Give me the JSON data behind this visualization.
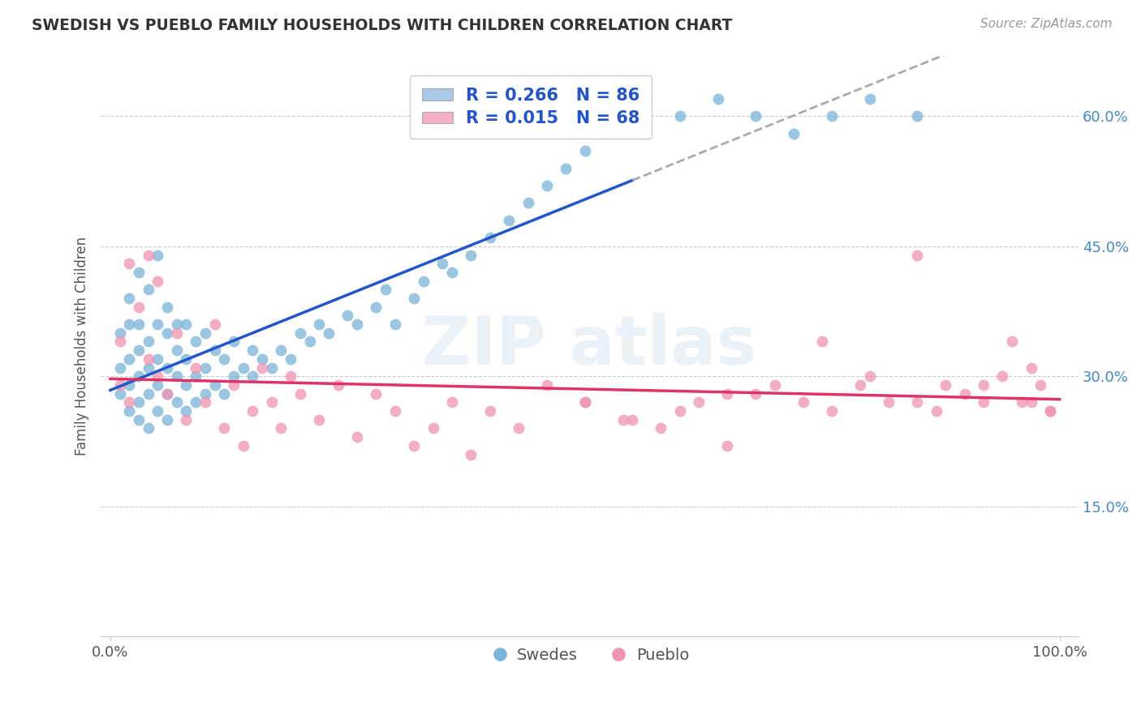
{
  "title": "SWEDISH VS PUEBLO FAMILY HOUSEHOLDS WITH CHILDREN CORRELATION CHART",
  "source": "Source: ZipAtlas.com",
  "ylabel": "Family Households with Children",
  "scatter_color_swedish": "#7ab4d8",
  "scatter_color_pueblo": "#f093b0",
  "trendline_color_swedish": "#2255cc",
  "trendline_color_pueblo": "#dd3366",
  "legend_fill_swedish": "#aac8e8",
  "legend_fill_pueblo": "#f4b0c8",
  "legend_text_1": "R = 0.266   N = 86",
  "legend_text_2": "R = 0.015   N = 68",
  "bottom_label_1": "Swedes",
  "bottom_label_2": "Pueblo",
  "watermark": "ZIPatlas",
  "y_ticks": [
    0.0,
    0.15,
    0.3,
    0.45,
    0.6
  ],
  "y_tick_labels": [
    "",
    "15.0%",
    "30.0%",
    "45.0%",
    "60.0%"
  ],
  "swedish_x": [
    0.01,
    0.01,
    0.01,
    0.02,
    0.02,
    0.02,
    0.02,
    0.02,
    0.03,
    0.03,
    0.03,
    0.03,
    0.03,
    0.03,
    0.04,
    0.04,
    0.04,
    0.04,
    0.04,
    0.05,
    0.05,
    0.05,
    0.05,
    0.05,
    0.06,
    0.06,
    0.06,
    0.06,
    0.06,
    0.07,
    0.07,
    0.07,
    0.07,
    0.08,
    0.08,
    0.08,
    0.08,
    0.09,
    0.09,
    0.09,
    0.1,
    0.1,
    0.1,
    0.11,
    0.11,
    0.12,
    0.12,
    0.13,
    0.13,
    0.14,
    0.15,
    0.15,
    0.16,
    0.17,
    0.18,
    0.19,
    0.2,
    0.21,
    0.22,
    0.23,
    0.25,
    0.26,
    0.28,
    0.29,
    0.3,
    0.32,
    0.33,
    0.35,
    0.36,
    0.38,
    0.4,
    0.42,
    0.44,
    0.46,
    0.48,
    0.5,
    0.52,
    0.54,
    0.56,
    0.6,
    0.64,
    0.68,
    0.72,
    0.76,
    0.8,
    0.85
  ],
  "swedish_y": [
    0.28,
    0.31,
    0.35,
    0.26,
    0.29,
    0.32,
    0.36,
    0.39,
    0.25,
    0.27,
    0.3,
    0.33,
    0.36,
    0.42,
    0.24,
    0.28,
    0.31,
    0.34,
    0.4,
    0.26,
    0.29,
    0.32,
    0.36,
    0.44,
    0.25,
    0.28,
    0.31,
    0.35,
    0.38,
    0.27,
    0.3,
    0.33,
    0.36,
    0.26,
    0.29,
    0.32,
    0.36,
    0.27,
    0.3,
    0.34,
    0.28,
    0.31,
    0.35,
    0.29,
    0.33,
    0.28,
    0.32,
    0.3,
    0.34,
    0.31,
    0.3,
    0.33,
    0.32,
    0.31,
    0.33,
    0.32,
    0.35,
    0.34,
    0.36,
    0.35,
    0.37,
    0.36,
    0.38,
    0.4,
    0.36,
    0.39,
    0.41,
    0.43,
    0.42,
    0.44,
    0.46,
    0.48,
    0.5,
    0.52,
    0.54,
    0.56,
    0.58,
    0.58,
    0.58,
    0.6,
    0.62,
    0.6,
    0.58,
    0.6,
    0.62,
    0.6
  ],
  "pueblo_x": [
    0.01,
    0.01,
    0.02,
    0.02,
    0.03,
    0.04,
    0.04,
    0.05,
    0.05,
    0.06,
    0.07,
    0.08,
    0.09,
    0.1,
    0.11,
    0.12,
    0.13,
    0.14,
    0.15,
    0.16,
    0.17,
    0.18,
    0.19,
    0.2,
    0.22,
    0.24,
    0.26,
    0.28,
    0.3,
    0.32,
    0.34,
    0.36,
    0.38,
    0.4,
    0.43,
    0.46,
    0.5,
    0.54,
    0.58,
    0.62,
    0.65,
    0.68,
    0.7,
    0.73,
    0.76,
    0.79,
    0.82,
    0.85,
    0.87,
    0.9,
    0.92,
    0.94,
    0.96,
    0.97,
    0.98,
    0.99,
    0.75,
    0.8,
    0.85,
    0.88,
    0.92,
    0.95,
    0.97,
    0.99,
    0.5,
    0.55,
    0.6,
    0.65
  ],
  "pueblo_y": [
    0.29,
    0.34,
    0.27,
    0.43,
    0.38,
    0.32,
    0.44,
    0.3,
    0.41,
    0.28,
    0.35,
    0.25,
    0.31,
    0.27,
    0.36,
    0.24,
    0.29,
    0.22,
    0.26,
    0.31,
    0.27,
    0.24,
    0.3,
    0.28,
    0.25,
    0.29,
    0.23,
    0.28,
    0.26,
    0.22,
    0.24,
    0.27,
    0.21,
    0.26,
    0.24,
    0.29,
    0.27,
    0.25,
    0.24,
    0.27,
    0.22,
    0.28,
    0.29,
    0.27,
    0.26,
    0.29,
    0.27,
    0.44,
    0.26,
    0.28,
    0.29,
    0.3,
    0.27,
    0.31,
    0.29,
    0.26,
    0.34,
    0.3,
    0.27,
    0.29,
    0.27,
    0.34,
    0.27,
    0.26,
    0.27,
    0.25,
    0.26,
    0.28
  ]
}
